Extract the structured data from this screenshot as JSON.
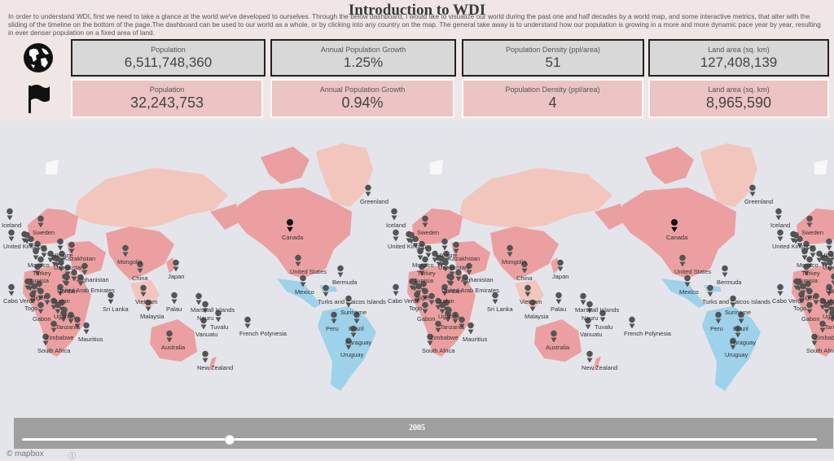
{
  "title": "Introduction to WDI",
  "intro": "In order to understand WDI, first we need to take a glance at the world we've developed to ourselves. Through the below dashboard, I would like to visualize our world during the past one and half decades by a world map, and some interactive metrics, that alter with the sliding of the timeline on the bottom of the page.The dashboard can be used to our world as a whole, or by clicking into any country on the map. The general take away is to understand how our population is growing in a more and more dynamic pace year by year, resulting in ever denser population on a fixed area of land.",
  "icons": {
    "world": "globe-icon",
    "country": "flag-icon"
  },
  "world_metrics": [
    {
      "label": "Population",
      "value": "6,511,748,360"
    },
    {
      "label": "Annual Population Growth",
      "value": "1.25%"
    },
    {
      "label": "Population Density (ppl/area)",
      "value": "51"
    },
    {
      "label": "Land area (sq. km)",
      "value": "127,408,139"
    }
  ],
  "country_metrics": [
    {
      "label": "Population",
      "value": "32,243,753"
    },
    {
      "label": "Annual Population Growth",
      "value": "0.94%"
    },
    {
      "label": "Population Density (ppl/area)",
      "value": "4"
    },
    {
      "label": "Land area (sq. km)",
      "value": "8,965,590"
    }
  ],
  "map": {
    "labels": [
      "Greenland",
      "Iceland",
      "Sweden",
      "United Kingdom",
      "Ukraine",
      "Kazakhstan",
      "Uzbekistan",
      "Monaco",
      "Mongolia",
      "Turkey",
      "Afghanistan",
      "Tunisia",
      "Jordan",
      "China",
      "Japan",
      "United Arab Emirates",
      "Niger",
      "Sudan",
      "Vietnam",
      "Cabo Verde",
      "Togo",
      "Sri Lanka",
      "Palau",
      "Uganda",
      "Gabon",
      "Malaysia",
      "Tanzania",
      "Zimbabwe",
      "Mauritius",
      "South Africa",
      "Australia",
      "Marshall Islands",
      "Nauru",
      "Tuvalu",
      "Vanuatu",
      "French Polynesia",
      "New Zealand",
      "Canada",
      "United States",
      "Bermuda",
      "Mexico",
      "Turks and Caicos Islands",
      "Suriname",
      "Peru",
      "Brazil",
      "Paraguay",
      "Uruguay"
    ],
    "colors": {
      "ocean": "#e3e5ea",
      "highlight": "#ec9fa0",
      "light_pink": "#f2c6bd",
      "south_america": "#9ed1ea",
      "other_land": "#f8f8f8"
    }
  },
  "timeline": {
    "year": "2005",
    "position": 0.26
  },
  "credit": "© mapbox"
}
